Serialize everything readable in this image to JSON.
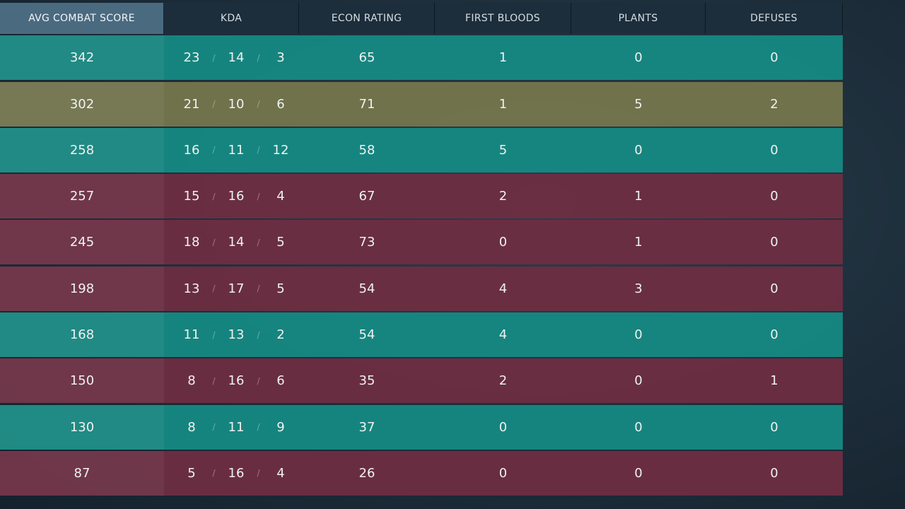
{
  "headers": {
    "acs": "AVG COMBAT SCORE",
    "kda": "KDA",
    "econ": "ECON RATING",
    "first_bloods": "FIRST BLOODS",
    "plants": "PLANTS",
    "defuses": "DEFUSES"
  },
  "kda_separator": "/",
  "colors": {
    "ally_row": "#168c84",
    "self_row": "#74764c",
    "enemy_row": "#702e42",
    "header_active": "#4a6a80"
  },
  "rows": [
    {
      "team": "ally",
      "acs": "342",
      "k": "23",
      "d": "14",
      "a": "3",
      "econ": "65",
      "fb": "1",
      "plants": "0",
      "defuses": "0"
    },
    {
      "team": "self",
      "acs": "302",
      "k": "21",
      "d": "10",
      "a": "6",
      "econ": "71",
      "fb": "1",
      "plants": "5",
      "defuses": "2"
    },
    {
      "team": "ally",
      "acs": "258",
      "k": "16",
      "d": "11",
      "a": "12",
      "econ": "58",
      "fb": "5",
      "plants": "0",
      "defuses": "0"
    },
    {
      "team": "enemy",
      "acs": "257",
      "k": "15",
      "d": "16",
      "a": "4",
      "econ": "67",
      "fb": "2",
      "plants": "1",
      "defuses": "0"
    },
    {
      "team": "enemy",
      "acs": "245",
      "k": "18",
      "d": "14",
      "a": "5",
      "econ": "73",
      "fb": "0",
      "plants": "1",
      "defuses": "0"
    },
    {
      "team": "enemy",
      "acs": "198",
      "k": "13",
      "d": "17",
      "a": "5",
      "econ": "54",
      "fb": "4",
      "plants": "3",
      "defuses": "0"
    },
    {
      "team": "ally",
      "acs": "168",
      "k": "11",
      "d": "13",
      "a": "2",
      "econ": "54",
      "fb": "4",
      "plants": "0",
      "defuses": "0"
    },
    {
      "team": "enemy",
      "acs": "150",
      "k": "8",
      "d": "16",
      "a": "6",
      "econ": "35",
      "fb": "2",
      "plants": "0",
      "defuses": "1"
    },
    {
      "team": "ally",
      "acs": "130",
      "k": "8",
      "d": "11",
      "a": "9",
      "econ": "37",
      "fb": "0",
      "plants": "0",
      "defuses": "0"
    },
    {
      "team": "enemy",
      "acs": "87",
      "k": "5",
      "d": "16",
      "a": "4",
      "econ": "26",
      "fb": "0",
      "plants": "0",
      "defuses": "0"
    }
  ]
}
